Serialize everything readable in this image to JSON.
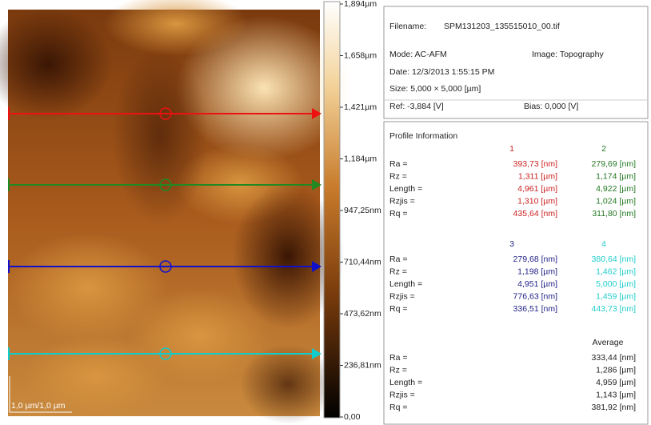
{
  "image": {
    "scale_bar": "1,0 µm/1,0 µm",
    "profiles": [
      {
        "color": "#ee1111"
      },
      {
        "color": "#228822"
      },
      {
        "color": "#1111cc"
      },
      {
        "color": "#11cccc"
      }
    ]
  },
  "colorbar": {
    "labels": [
      "1,894µm",
      "1,658µm",
      "1,421µm",
      "1,184µm",
      "947,25nm",
      "710,44nm",
      "473,62nm",
      "236,81nm",
      "0,00"
    ]
  },
  "info": {
    "filename_label": "Filename:",
    "filename": "SPM131203_135515010_00.tif",
    "mode": "Mode: AC-AFM",
    "image": "Image: Topography",
    "date": "Date: 12/3/2013 1:55:15 PM",
    "size": "Size:  5,000 × 5,000 [µm]",
    "ref": "Ref: -3,884 [V]",
    "bias": "Bias:  0,000 [V]"
  },
  "profile": {
    "title": "Profile Information",
    "groups": [
      {
        "labels": [
          "Ra =",
          "Rz =",
          "Length =",
          "Rzjis =",
          "Rq ="
        ],
        "columns": [
          {
            "header": "1",
            "color": "#cc2222",
            "values": [
              "393,73 [nm]",
              "1,311 [µm]",
              "4,961 [µm]",
              "1,310 [µm]",
              "435,64 [nm]"
            ]
          },
          {
            "header": "2",
            "color": "#227722",
            "values": [
              "279,69 [nm]",
              "1,174 [µm]",
              "4,922 [µm]",
              "1,024 [µm]",
              "311,80 [nm]"
            ]
          }
        ]
      },
      {
        "labels": [
          "Ra =",
          "Rz =",
          "Length =",
          "Rzjis =",
          "Rq ="
        ],
        "columns": [
          {
            "header": "3",
            "color": "#222288",
            "values": [
              "279,68 [nm]",
              "1,198 [µm]",
              "4,951 [µm]",
              "776,63 [nm]",
              "336,51 [nm]"
            ]
          },
          {
            "header": "4",
            "color": "#22cccc",
            "values": [
              "380,64 [nm]",
              "1,462 [µm]",
              "5,000 [µm]",
              "1,459 [µm]",
              "443,73 [nm]"
            ]
          }
        ]
      },
      {
        "labels": [
          "Ra =",
          "Rz =",
          "Length =",
          "Rzjis =",
          "Rq ="
        ],
        "columns": [
          {
            "header": "Average",
            "color": "#222222",
            "values": [
              "333,44 [nm]",
              "1,286 [µm]",
              "4,959 [µm]",
              "1,143 [µm]",
              "381,92 [nm]"
            ]
          }
        ]
      }
    ]
  }
}
